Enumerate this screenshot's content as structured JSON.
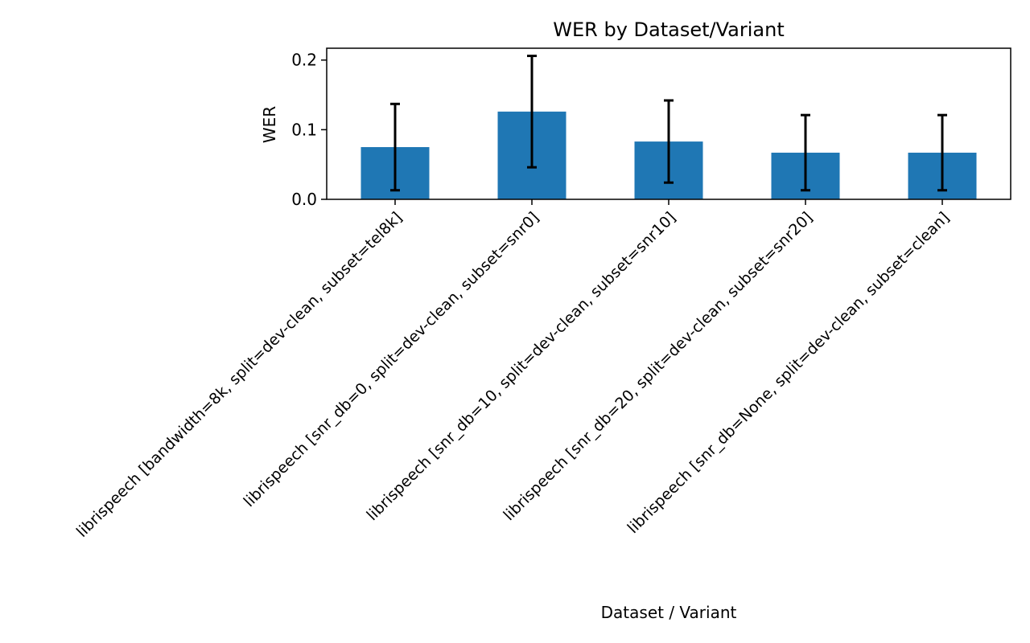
{
  "chart_data": {
    "type": "bar",
    "title": "WER by Dataset/Variant",
    "xlabel": "Dataset / Variant",
    "ylabel": "WER",
    "ylim": [
      0,
      0.217
    ],
    "yticks": [
      0.0,
      0.1,
      0.2
    ],
    "ytick_labels": [
      "0.0",
      "0.1",
      "0.2"
    ],
    "grid": false,
    "legend": "none",
    "bar_color": "#1f77b4",
    "errorbar_color": "#000000",
    "categories": [
      "librispeech [bandwidth=8k, split=dev-clean, subset=tel8k]",
      "librispeech [snr_db=0, split=dev-clean, subset=snr0]",
      "librispeech [snr_db=10, split=dev-clean, subset=snr10]",
      "librispeech [snr_db=20, split=dev-clean, subset=snr20]",
      "librispeech [snr_db=None, split=dev-clean, subset=clean]"
    ],
    "values": [
      0.075,
      0.126,
      0.083,
      0.067,
      0.067
    ],
    "errors": [
      0.062,
      0.08,
      0.059,
      0.054,
      0.054
    ]
  }
}
